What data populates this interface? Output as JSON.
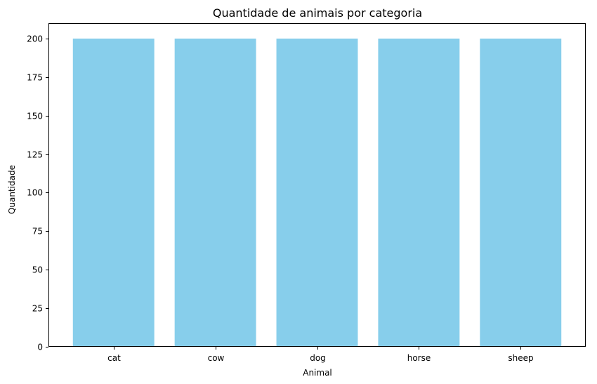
{
  "chart_data": {
    "type": "bar",
    "title": "Quantidade de animais por categoria",
    "xlabel": "Animal",
    "ylabel": "Quantidade",
    "categories": [
      "cat",
      "cow",
      "dog",
      "horse",
      "sheep"
    ],
    "values": [
      200,
      200,
      200,
      200,
      200
    ],
    "ylim": [
      0,
      210
    ],
    "yticks": [
      0,
      25,
      50,
      75,
      100,
      125,
      150,
      175,
      200
    ],
    "grid": false,
    "legend": "none",
    "bar_color": "#87ceeb"
  }
}
